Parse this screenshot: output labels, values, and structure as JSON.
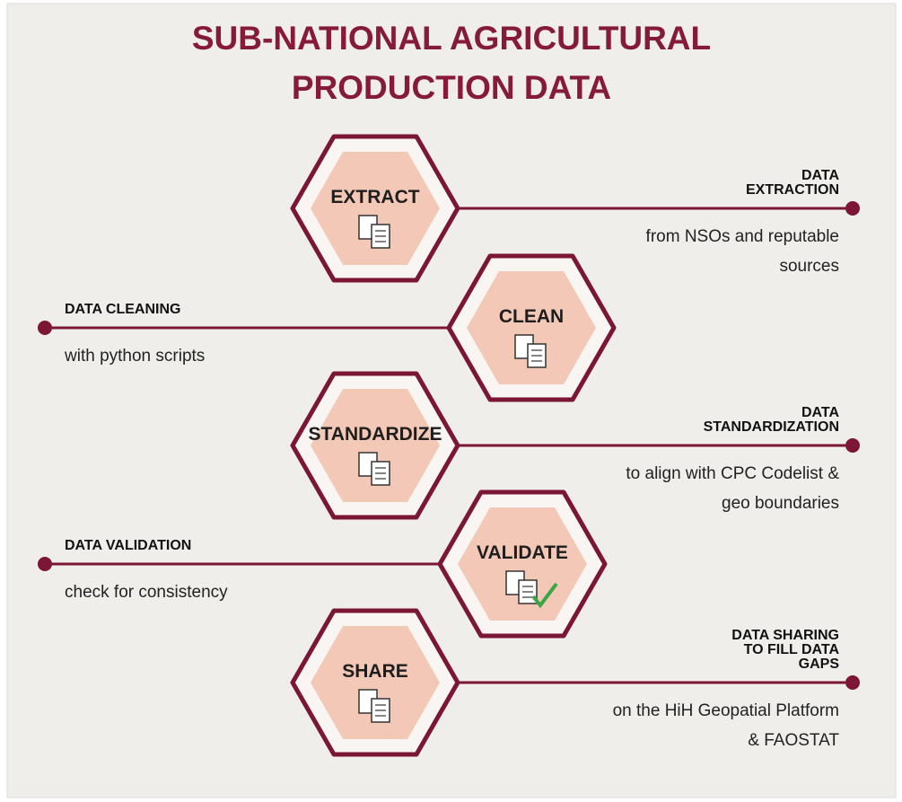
{
  "header": {
    "title": [
      "SUB-NATIONAL AGRICULTURAL",
      "PRODUCTION DATA"
    ]
  },
  "steps": [
    {
      "label": "EXTRACT",
      "heading": [
        "DATA",
        "EXTRACTION"
      ],
      "description": [
        "from NSOs and reputable",
        "sources"
      ]
    },
    {
      "label": "CLEAN",
      "heading": [
        "DATA CLEANING"
      ],
      "description": [
        "with python scripts"
      ]
    },
    {
      "label": "STANDARDIZE",
      "heading": [
        "DATA",
        "STANDARDIZATION"
      ],
      "description": [
        "to align with CPC Codelist &",
        "geo boundaries"
      ]
    },
    {
      "label": "VALIDATE",
      "heading": [
        "DATA VALIDATION"
      ],
      "description": [
        "check for consistency"
      ]
    },
    {
      "label": "SHARE",
      "heading": [
        "DATA SHARING",
        "TO FILL DATA",
        "GAPS"
      ],
      "description": [
        "on the HiH Geopatial Platform",
        "& FAOSTAT"
      ]
    }
  ]
}
